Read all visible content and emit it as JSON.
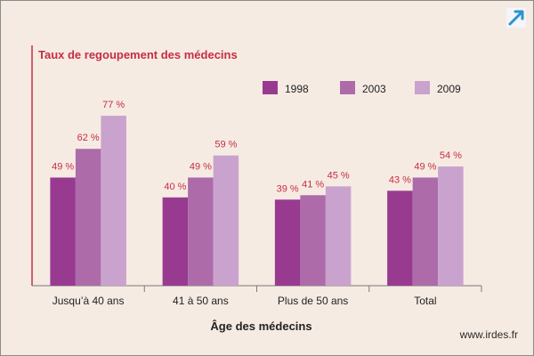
{
  "chart_data": {
    "type": "bar",
    "title": "Taux de regoupement des médecins",
    "xlabel": "Âge des médecins",
    "ylabel": "",
    "ylim": [
      0,
      90
    ],
    "grid": false,
    "legend_position": "top-right",
    "categories": [
      "Jusqu’à 40 ans",
      "41 à 50 ans",
      "Plus de 50 ans",
      "Total"
    ],
    "series": [
      {
        "name": "1998",
        "values": [
          49,
          40,
          39,
          43
        ],
        "labels": [
          "49 %",
          "40 %",
          "39 %",
          "43 %"
        ],
        "color": "#993a91"
      },
      {
        "name": "2003",
        "values": [
          62,
          49,
          41,
          49
        ],
        "labels": [
          "62 %",
          "49 %",
          "41 %",
          "49 %"
        ],
        "color": "#ad6ba9"
      },
      {
        "name": "2009",
        "values": [
          77,
          59,
          45,
          54
        ],
        "labels": [
          "77 %",
          "59 %",
          "45 %",
          "54 %"
        ],
        "color": "#c9a3cd"
      }
    ],
    "colors": {
      "background": "#f6ebe3",
      "axis_left": "#c62d42",
      "axis_bottom": "#7a7a7a",
      "title": "#c62d42",
      "data_label": "#c62d42"
    }
  },
  "source": "www.irdes.fr",
  "icon": "expand-arrow-icon"
}
